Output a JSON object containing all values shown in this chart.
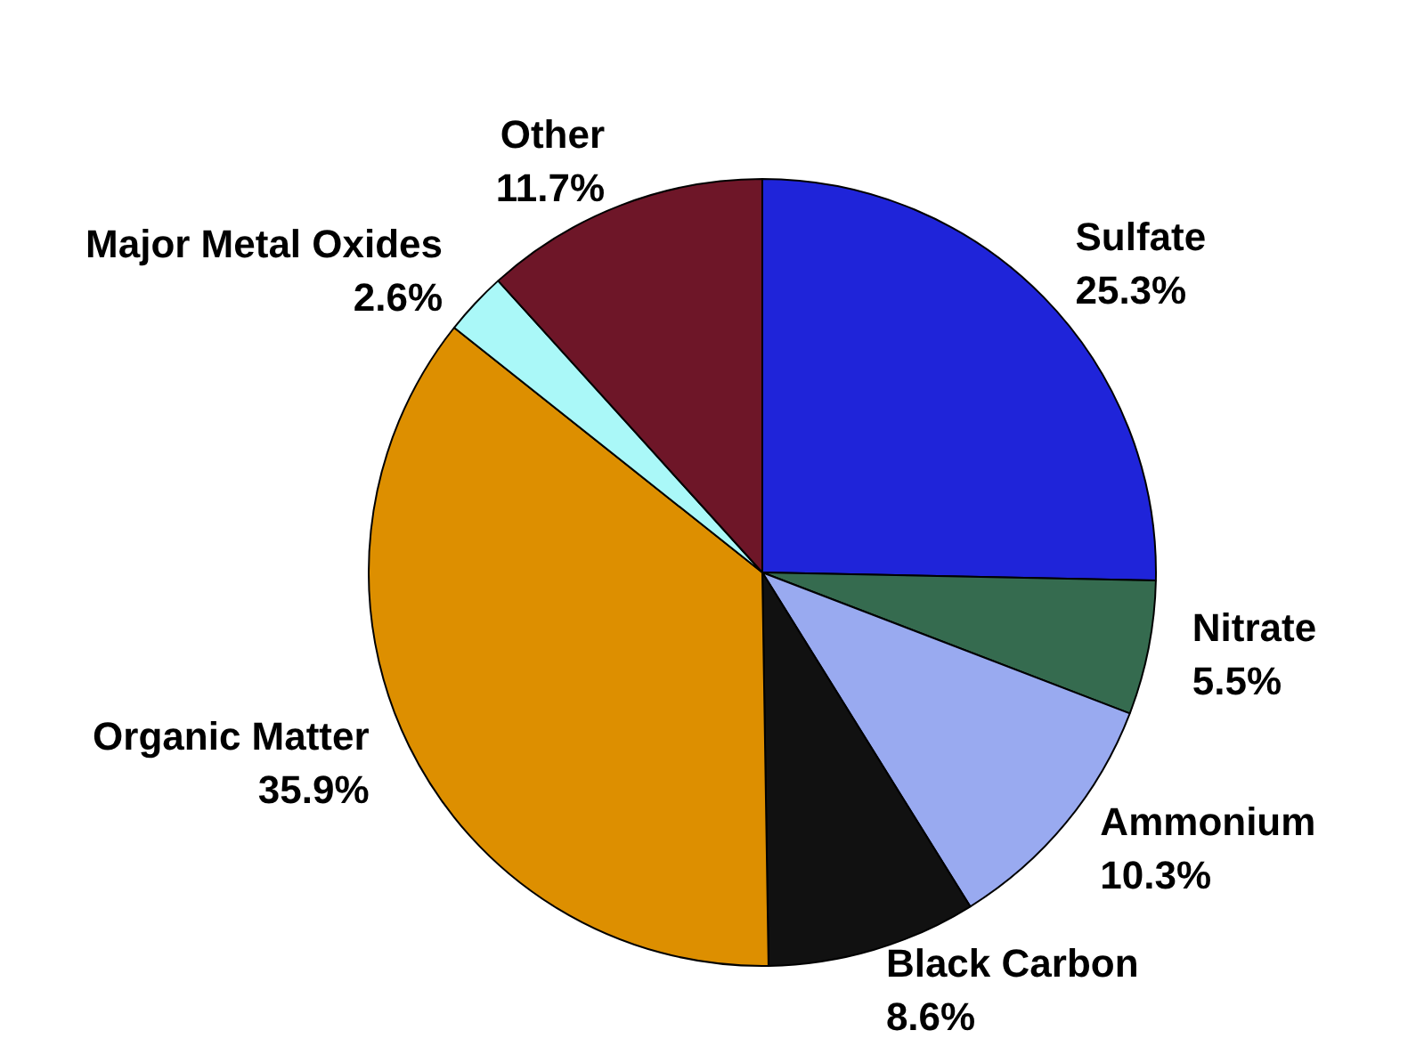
{
  "chart_data": {
    "type": "pie",
    "categories": [
      "Sulfate",
      "Nitrate",
      "Ammonium",
      "Black Carbon",
      "Organic Matter",
      "Major Metal Oxides",
      "Other"
    ],
    "values": [
      25.3,
      5.5,
      10.3,
      8.6,
      35.9,
      2.6,
      11.7
    ],
    "value_labels": [
      "25.3%",
      "5.5%",
      "10.3%",
      "8.6%",
      "35.9%",
      "2.6%",
      "11.7%"
    ],
    "colors": [
      "#1f24d9",
      "#356b4f",
      "#99aaf0",
      "#111111",
      "#dd8f00",
      "#aaf8f8",
      "#6e1628"
    ],
    "legend": false
  }
}
